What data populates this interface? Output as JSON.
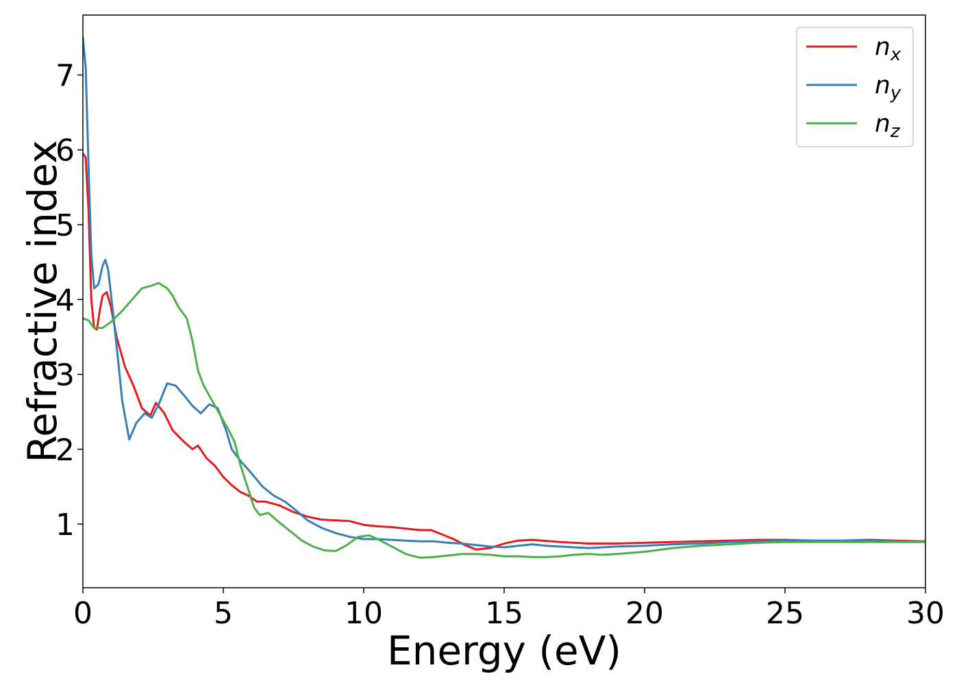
{
  "chart_data": {
    "type": "line",
    "title": "",
    "xlabel": "Energy (eV)",
    "ylabel": "Refractive index",
    "xlim": [
      0,
      30
    ],
    "ylim": [
      0.15,
      7.8
    ],
    "xticks": [
      0,
      5,
      10,
      15,
      20,
      25,
      30
    ],
    "yticks": [
      1,
      2,
      3,
      4,
      5,
      6,
      7
    ],
    "grid": false,
    "legend_position": "top-right",
    "series": [
      {
        "name": "n",
        "subscript": "x",
        "color": "#e41a1c",
        "points": [
          [
            0,
            5.95
          ],
          [
            0.1,
            5.9
          ],
          [
            0.2,
            5.2
          ],
          [
            0.3,
            4.0
          ],
          [
            0.4,
            3.62
          ],
          [
            0.5,
            3.6
          ],
          [
            0.6,
            3.85
          ],
          [
            0.7,
            4.05
          ],
          [
            0.85,
            4.1
          ],
          [
            1.0,
            3.9
          ],
          [
            1.2,
            3.5
          ],
          [
            1.5,
            3.1
          ],
          [
            1.8,
            2.85
          ],
          [
            2.1,
            2.55
          ],
          [
            2.4,
            2.45
          ],
          [
            2.6,
            2.62
          ],
          [
            2.9,
            2.48
          ],
          [
            3.2,
            2.25
          ],
          [
            3.6,
            2.1
          ],
          [
            3.9,
            2.0
          ],
          [
            4.1,
            2.05
          ],
          [
            4.4,
            1.88
          ],
          [
            4.7,
            1.78
          ],
          [
            5.0,
            1.63
          ],
          [
            5.3,
            1.52
          ],
          [
            5.6,
            1.43
          ],
          [
            5.9,
            1.38
          ],
          [
            6.2,
            1.3
          ],
          [
            6.5,
            1.3
          ],
          [
            7.0,
            1.25
          ],
          [
            7.5,
            1.16
          ],
          [
            8.0,
            1.1
          ],
          [
            8.5,
            1.06
          ],
          [
            9.0,
            1.05
          ],
          [
            9.5,
            1.04
          ],
          [
            10.0,
            0.99
          ],
          [
            10.5,
            0.97
          ],
          [
            11.0,
            0.96
          ],
          [
            11.5,
            0.94
          ],
          [
            12.0,
            0.92
          ],
          [
            12.4,
            0.92
          ],
          [
            12.8,
            0.86
          ],
          [
            13.2,
            0.8
          ],
          [
            13.6,
            0.72
          ],
          [
            14.0,
            0.66
          ],
          [
            14.5,
            0.68
          ],
          [
            15.0,
            0.74
          ],
          [
            15.5,
            0.78
          ],
          [
            16.0,
            0.79
          ],
          [
            17.0,
            0.76
          ],
          [
            18.0,
            0.74
          ],
          [
            19.0,
            0.74
          ],
          [
            20.0,
            0.75
          ],
          [
            21.0,
            0.76
          ],
          [
            22.0,
            0.77
          ],
          [
            23.0,
            0.78
          ],
          [
            24.0,
            0.79
          ],
          [
            25.0,
            0.79
          ],
          [
            26.0,
            0.78
          ],
          [
            27.0,
            0.78
          ],
          [
            28.0,
            0.79
          ],
          [
            29.0,
            0.78
          ],
          [
            30.0,
            0.77
          ]
        ]
      },
      {
        "name": "n",
        "subscript": "y",
        "color": "#377eb8",
        "points": [
          [
            0,
            7.5
          ],
          [
            0.1,
            7.1
          ],
          [
            0.2,
            5.8
          ],
          [
            0.3,
            4.6
          ],
          [
            0.4,
            4.15
          ],
          [
            0.55,
            4.2
          ],
          [
            0.7,
            4.45
          ],
          [
            0.8,
            4.53
          ],
          [
            0.9,
            4.4
          ],
          [
            1.05,
            3.9
          ],
          [
            1.25,
            3.2
          ],
          [
            1.4,
            2.65
          ],
          [
            1.65,
            2.13
          ],
          [
            1.9,
            2.35
          ],
          [
            2.2,
            2.48
          ],
          [
            2.45,
            2.42
          ],
          [
            2.7,
            2.6
          ],
          [
            3.0,
            2.88
          ],
          [
            3.3,
            2.85
          ],
          [
            3.6,
            2.72
          ],
          [
            3.9,
            2.58
          ],
          [
            4.2,
            2.48
          ],
          [
            4.5,
            2.6
          ],
          [
            4.8,
            2.55
          ],
          [
            5.1,
            2.25
          ],
          [
            5.3,
            2.0
          ],
          [
            5.6,
            1.85
          ],
          [
            6.0,
            1.68
          ],
          [
            6.4,
            1.5
          ],
          [
            6.8,
            1.38
          ],
          [
            7.2,
            1.3
          ],
          [
            7.6,
            1.18
          ],
          [
            8.0,
            1.05
          ],
          [
            8.5,
            0.95
          ],
          [
            9.0,
            0.88
          ],
          [
            9.5,
            0.83
          ],
          [
            10.0,
            0.8
          ],
          [
            10.5,
            0.8
          ],
          [
            11.0,
            0.79
          ],
          [
            11.5,
            0.78
          ],
          [
            12.0,
            0.77
          ],
          [
            12.5,
            0.77
          ],
          [
            13.0,
            0.75
          ],
          [
            13.5,
            0.74
          ],
          [
            14.0,
            0.72
          ],
          [
            14.5,
            0.7
          ],
          [
            15.0,
            0.69
          ],
          [
            15.5,
            0.71
          ],
          [
            16.0,
            0.73
          ],
          [
            16.5,
            0.71
          ],
          [
            17.0,
            0.7
          ],
          [
            17.5,
            0.69
          ],
          [
            18.0,
            0.68
          ],
          [
            18.5,
            0.69
          ],
          [
            19.0,
            0.7
          ],
          [
            20.0,
            0.71
          ],
          [
            21.0,
            0.73
          ],
          [
            22.0,
            0.74
          ],
          [
            23.0,
            0.76
          ],
          [
            24.0,
            0.77
          ],
          [
            25.0,
            0.78
          ],
          [
            26.0,
            0.78
          ],
          [
            27.0,
            0.78
          ],
          [
            28.0,
            0.78
          ],
          [
            29.0,
            0.77
          ],
          [
            30.0,
            0.77
          ]
        ]
      },
      {
        "name": "n",
        "subscript": "z",
        "color": "#4daf4a",
        "points": [
          [
            0,
            3.75
          ],
          [
            0.2,
            3.72
          ],
          [
            0.4,
            3.62
          ],
          [
            0.7,
            3.62
          ],
          [
            1.0,
            3.7
          ],
          [
            1.4,
            3.85
          ],
          [
            1.8,
            4.02
          ],
          [
            2.1,
            4.15
          ],
          [
            2.4,
            4.18
          ],
          [
            2.7,
            4.22
          ],
          [
            3.0,
            4.15
          ],
          [
            3.2,
            4.05
          ],
          [
            3.4,
            3.9
          ],
          [
            3.7,
            3.75
          ],
          [
            3.9,
            3.45
          ],
          [
            4.1,
            3.05
          ],
          [
            4.3,
            2.85
          ],
          [
            4.6,
            2.65
          ],
          [
            4.9,
            2.45
          ],
          [
            5.2,
            2.25
          ],
          [
            5.4,
            2.1
          ],
          [
            5.6,
            1.8
          ],
          [
            5.9,
            1.45
          ],
          [
            6.1,
            1.22
          ],
          [
            6.3,
            1.12
          ],
          [
            6.6,
            1.15
          ],
          [
            7.0,
            1.02
          ],
          [
            7.4,
            0.9
          ],
          [
            7.8,
            0.78
          ],
          [
            8.2,
            0.7
          ],
          [
            8.6,
            0.65
          ],
          [
            9.0,
            0.64
          ],
          [
            9.4,
            0.72
          ],
          [
            9.8,
            0.83
          ],
          [
            10.2,
            0.85
          ],
          [
            10.6,
            0.78
          ],
          [
            11.0,
            0.7
          ],
          [
            11.5,
            0.6
          ],
          [
            12.0,
            0.55
          ],
          [
            12.5,
            0.56
          ],
          [
            13.0,
            0.58
          ],
          [
            13.5,
            0.6
          ],
          [
            14.0,
            0.6
          ],
          [
            14.5,
            0.59
          ],
          [
            15.0,
            0.57
          ],
          [
            15.5,
            0.57
          ],
          [
            16.0,
            0.56
          ],
          [
            16.5,
            0.56
          ],
          [
            17.0,
            0.57
          ],
          [
            17.5,
            0.59
          ],
          [
            18.0,
            0.6
          ],
          [
            18.5,
            0.59
          ],
          [
            19.0,
            0.6
          ],
          [
            20.0,
            0.63
          ],
          [
            21.0,
            0.68
          ],
          [
            22.0,
            0.71
          ],
          [
            23.0,
            0.73
          ],
          [
            24.0,
            0.75
          ],
          [
            25.0,
            0.76
          ],
          [
            26.0,
            0.76
          ],
          [
            27.0,
            0.76
          ],
          [
            28.0,
            0.76
          ],
          [
            29.0,
            0.76
          ],
          [
            30.0,
            0.76
          ]
        ]
      }
    ]
  }
}
